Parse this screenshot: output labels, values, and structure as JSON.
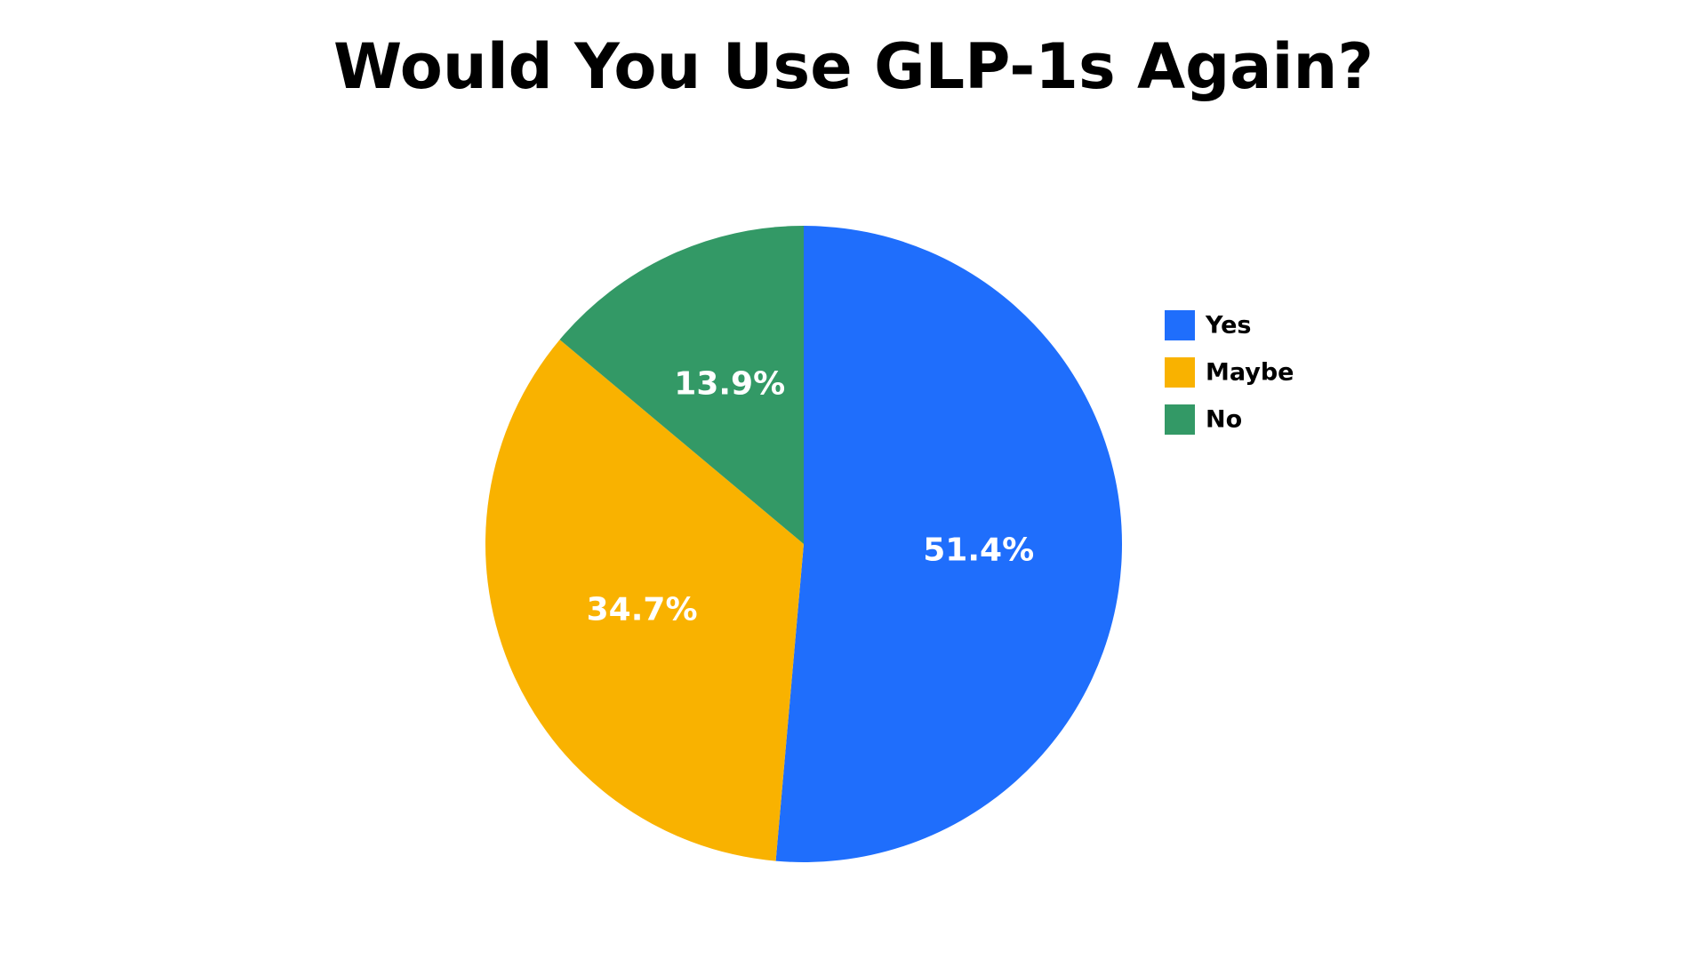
{
  "chart_data": {
    "type": "pie",
    "title": "Would You Use GLP-1s Again?",
    "categories": [
      "Yes",
      "Maybe",
      "No"
    ],
    "values": [
      51.4,
      34.7,
      13.9
    ],
    "value_labels": [
      "51.4%",
      "34.7%",
      "13.9%"
    ],
    "colors": [
      "#1f6efc",
      "#f9b200",
      "#339966"
    ],
    "legend": "right"
  }
}
